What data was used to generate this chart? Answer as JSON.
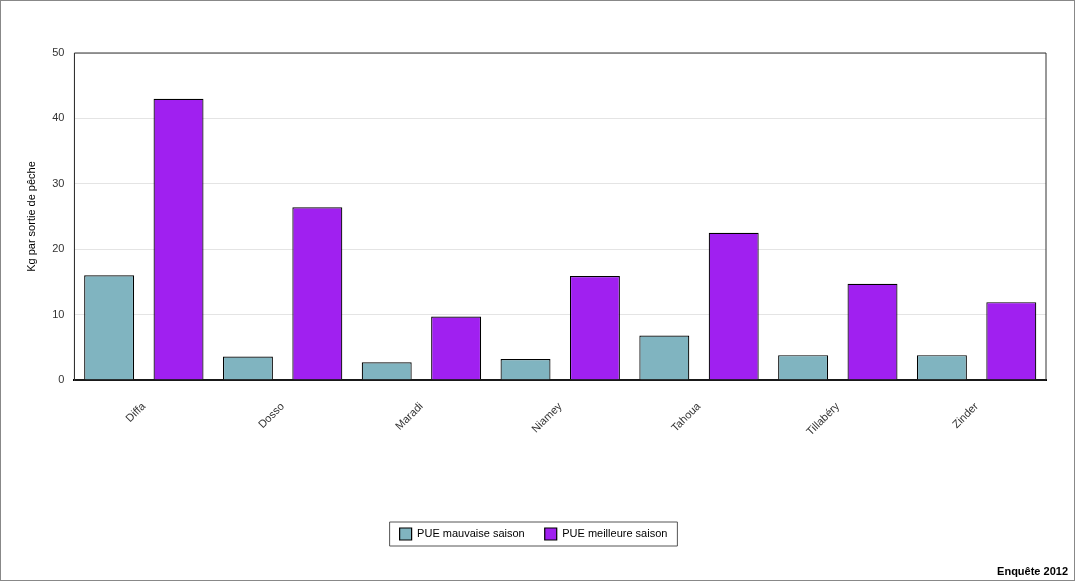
{
  "chart_data": {
    "type": "bar",
    "ylabel": "Kg par sortie de pêche",
    "categories": [
      "Diffa",
      "Dosso",
      "Maradi",
      "Niamey",
      "Tahoua",
      "Tillabéry",
      "Zinder"
    ],
    "series": [
      {
        "name": "PUE mauvaise saison",
        "color": "#80b4c0",
        "values": [
          16.0,
          3.6,
          2.7,
          3.2,
          6.8,
          3.8,
          3.8
        ]
      },
      {
        "name": "PUE meilleure saison",
        "color": "#a020f0",
        "values": [
          43.0,
          26.4,
          9.7,
          15.9,
          22.5,
          14.7,
          11.9
        ]
      }
    ],
    "ylim": [
      0,
      50
    ],
    "yticks": [
      0,
      10,
      20,
      30,
      40,
      50
    ],
    "grid": "y",
    "legend": "bottom",
    "annotations": [
      "Enquête 2012"
    ]
  }
}
